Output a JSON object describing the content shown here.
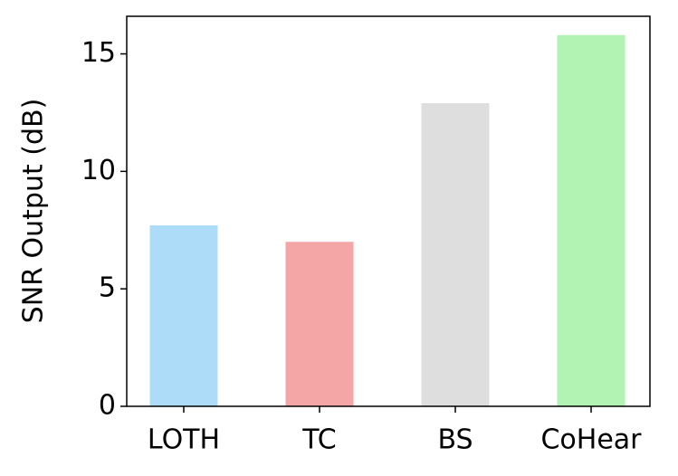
{
  "chart_data": {
    "type": "bar",
    "ylabel": "SNR Output (dB)",
    "categories": [
      "LOTH",
      "TC",
      "BS",
      "CoHear"
    ],
    "values": [
      7.7,
      7.0,
      12.9,
      15.8
    ],
    "colors": [
      "#acdcf8",
      "#f4a6a6",
      "#dedede",
      "#b2f2b2"
    ],
    "ylim": [
      0,
      16.6
    ],
    "yticks": [
      0,
      5,
      10,
      15
    ],
    "grid": false
  }
}
